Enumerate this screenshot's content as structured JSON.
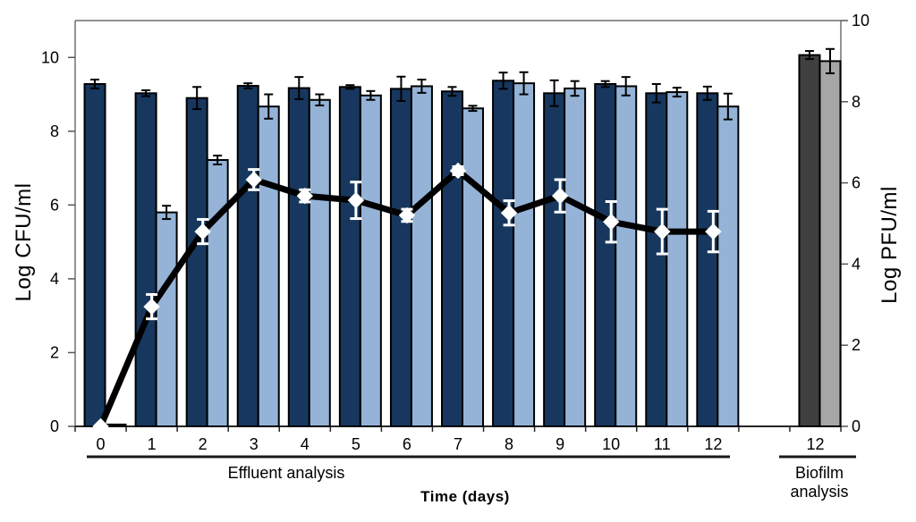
{
  "chart_data": {
    "type": "bar+line combo",
    "title": "",
    "xlabel": "Time (days)",
    "left_axis": {
      "label": "Log CFU/ml",
      "ticks": [
        0,
        2,
        4,
        6,
        8,
        10
      ],
      "min": 0,
      "max": 11
    },
    "right_axis": {
      "label": "Log PFU/ml",
      "ticks": [
        0,
        2,
        4,
        6,
        8,
        10
      ],
      "min": 0,
      "max": 10
    },
    "categories": [
      "0",
      "1",
      "2",
      "3",
      "4",
      "5",
      "6",
      "7",
      "8",
      "9",
      "10",
      "11",
      "12"
    ],
    "groups": [
      {
        "label": "Effluent analysis",
        "categories": "0-12"
      },
      {
        "label": "Biofilm\nanalysis",
        "category_label": "12"
      }
    ],
    "grid": false,
    "legend": "none",
    "series": [
      {
        "name": "effluent-dark-blue-bars",
        "type": "bar",
        "axis": "left",
        "color": "#17375E",
        "values": [
          9.28,
          9.03,
          8.9,
          9.23,
          9.17,
          9.2,
          9.15,
          9.08,
          9.37,
          9.03,
          9.28,
          9.03,
          9.03
        ],
        "errors": [
          0.12,
          0.08,
          0.3,
          0.07,
          0.3,
          0.05,
          0.33,
          0.12,
          0.22,
          0.35,
          0.08,
          0.25,
          0.18
        ]
      },
      {
        "name": "effluent-light-blue-bars",
        "type": "bar",
        "axis": "left",
        "color": "#95B3D7",
        "values": [
          0.05,
          5.8,
          7.22,
          8.67,
          8.85,
          8.97,
          9.22,
          8.62,
          9.3,
          9.16,
          9.22,
          9.06,
          8.67
        ],
        "errors": [
          0.0,
          0.18,
          0.12,
          0.33,
          0.15,
          0.12,
          0.18,
          0.07,
          0.3,
          0.2,
          0.25,
          0.12,
          0.35
        ]
      },
      {
        "name": "effluent-phage-line",
        "type": "line",
        "axis": "right",
        "color": "#000000",
        "marker": "white-diamond",
        "marker_color": "#FFFFFF",
        "error_color": "#FFFFFF",
        "values": [
          0,
          2.95,
          4.8,
          6.08,
          5.68,
          5.57,
          5.2,
          6.3,
          5.26,
          5.68,
          5.04,
          4.8,
          4.8
        ],
        "errors": [
          0,
          0.3,
          0.3,
          0.25,
          0.15,
          0.45,
          0.15,
          0.1,
          0.3,
          0.4,
          0.5,
          0.55,
          0.5
        ]
      },
      {
        "name": "biofilm-dark-gray-bar",
        "type": "bar",
        "axis": "right",
        "color": "#404040",
        "category_label": "12",
        "values": [
          9.15
        ],
        "errors": [
          0.1
        ]
      },
      {
        "name": "biofilm-light-gray-bar",
        "type": "bar",
        "axis": "right",
        "color": "#A6A6A6",
        "category_label": "12",
        "values": [
          9.0
        ],
        "errors": [
          0.3
        ]
      }
    ]
  }
}
